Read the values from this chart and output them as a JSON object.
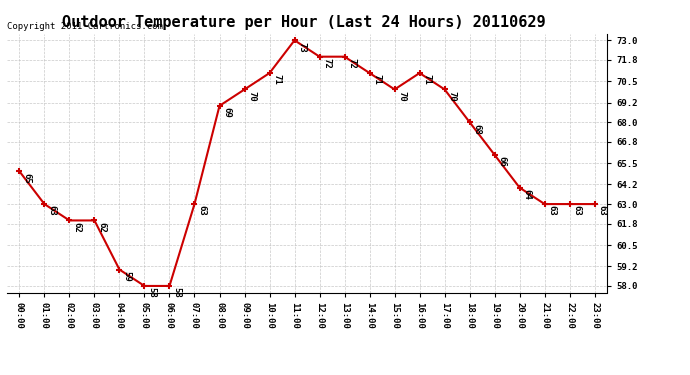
{
  "title": "Outdoor Temperature per Hour (Last 24 Hours) 20110629",
  "copyright": "Copyright 2011 Cartronics.com",
  "hours": [
    "00:00",
    "01:00",
    "02:00",
    "03:00",
    "04:00",
    "05:00",
    "06:00",
    "07:00",
    "08:00",
    "09:00",
    "10:00",
    "11:00",
    "12:00",
    "13:00",
    "14:00",
    "15:00",
    "16:00",
    "17:00",
    "18:00",
    "19:00",
    "20:00",
    "21:00",
    "22:00",
    "23:00"
  ],
  "temps": [
    65,
    63,
    62,
    62,
    59,
    58,
    58,
    63,
    69,
    70,
    71,
    73,
    72,
    72,
    71,
    70,
    71,
    70,
    68,
    66,
    64,
    63,
    63,
    63
  ],
  "line_color": "#cc0000",
  "marker_color": "#cc0000",
  "bg_color": "#ffffff",
  "grid_color": "#bbbbbb",
  "yticks": [
    58.0,
    59.2,
    60.5,
    61.8,
    63.0,
    64.2,
    65.5,
    66.8,
    68.0,
    69.2,
    70.5,
    71.8,
    73.0
  ],
  "ylim": [
    57.6,
    73.4
  ],
  "title_fontsize": 11,
  "copyright_fontsize": 6.5,
  "label_fontsize": 6.5,
  "tick_fontsize": 6.5
}
